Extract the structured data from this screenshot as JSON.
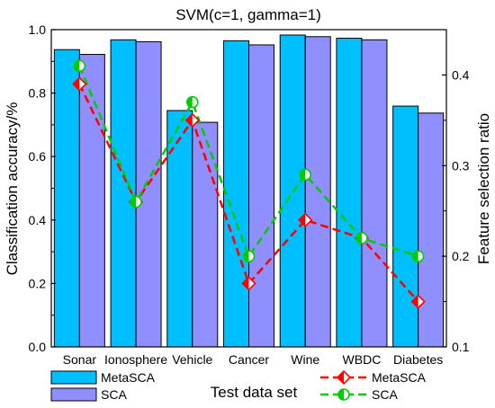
{
  "chart_data": {
    "type": "bar",
    "title": "SVM(c=1, gamma=1)",
    "xlabel": "Test data set",
    "ylabel": "Classification accuracy/%",
    "ylabel_right": "Feature selection ratio",
    "categories": [
      "Sonar",
      "Ionosphere",
      "Vehicle",
      "Cancer",
      "Wine",
      "WBDC",
      "Diabetes"
    ],
    "ylim": [
      0,
      1.0
    ],
    "yticks": [
      "0.0",
      "0.2",
      "0.4",
      "0.6",
      "0.8",
      "1.0"
    ],
    "ylim_right": [
      0.1,
      0.45
    ],
    "yticks_right": [
      "0.1",
      "0.2",
      "0.3",
      "0.4"
    ],
    "bar_series": [
      {
        "name": "MetaSCA",
        "color": "#00bfff",
        "values": [
          0.937,
          0.968,
          0.745,
          0.965,
          0.983,
          0.973,
          0.759
        ]
      },
      {
        "name": "SCA",
        "color": "#8f8fff",
        "values": [
          0.922,
          0.962,
          0.708,
          0.952,
          0.978,
          0.968,
          0.737
        ]
      }
    ],
    "line_series": [
      {
        "name": "MetaSCA",
        "color": "#ff0000",
        "marker": "diamond",
        "axis": "right",
        "values": [
          0.39,
          0.26,
          0.35,
          0.17,
          0.24,
          0.22,
          0.15
        ]
      },
      {
        "name": "SCA",
        "color": "#00cc00",
        "marker": "circle",
        "axis": "right",
        "values": [
          0.41,
          0.26,
          0.37,
          0.2,
          0.29,
          0.22,
          0.2
        ]
      }
    ],
    "grid": false,
    "legend_placement": "bottom"
  }
}
